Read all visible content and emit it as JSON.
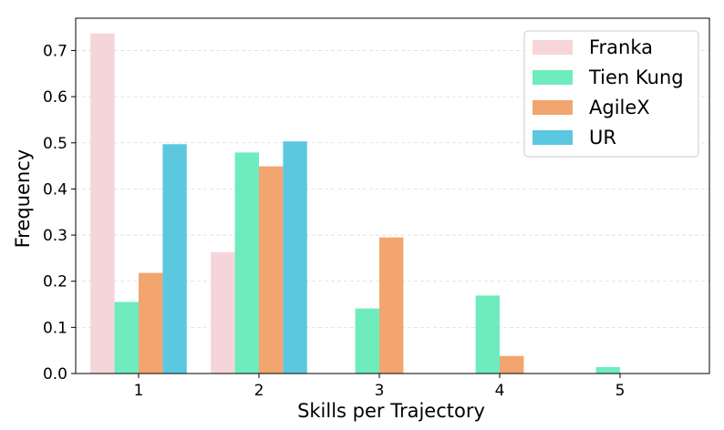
{
  "chart_data": {
    "type": "bar",
    "xlabel": "Skills per Trajectory",
    "ylabel": "Frequency",
    "categories": [
      "1",
      "2",
      "3",
      "4",
      "5"
    ],
    "ylim": [
      0,
      0.77
    ],
    "yticks": [
      "0.0",
      "0.1",
      "0.2",
      "0.3",
      "0.4",
      "0.5",
      "0.6",
      "0.7"
    ],
    "grid": true,
    "legend_position": "top-right",
    "series": [
      {
        "name": "Franka",
        "color": "#f5d5d9",
        "values": [
          0.737,
          0.263,
          0,
          0,
          0
        ]
      },
      {
        "name": "Tien Kung",
        "color": "#6eecbe",
        "values": [
          0.155,
          0.479,
          0.141,
          0.169,
          0.014
        ]
      },
      {
        "name": "AgileX",
        "color": "#f2a56f",
        "values": [
          0.218,
          0.449,
          0.295,
          0.038,
          0
        ]
      },
      {
        "name": "UR",
        "color": "#5bc8e0",
        "values": [
          0.497,
          0.503,
          0,
          0,
          0
        ]
      }
    ]
  }
}
